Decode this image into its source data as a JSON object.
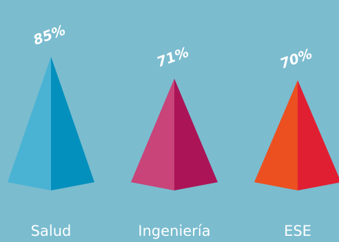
{
  "chart_data": {
    "type": "bar",
    "categories": [
      "Salud",
      "Ingeniería",
      "ESE"
    ],
    "values": [
      85,
      71,
      70
    ],
    "value_labels": [
      "85%",
      "71%",
      "70%"
    ],
    "colors": [
      {
        "light": "#4ab3d3",
        "dark": "#0490bd"
      },
      {
        "light": "#c84479",
        "dark": "#ab1557"
      },
      {
        "light": "#ec5021",
        "dark": "#e11f32"
      }
    ],
    "background": "#7bbccf",
    "title": "",
    "xlabel": "",
    "ylabel": ""
  }
}
